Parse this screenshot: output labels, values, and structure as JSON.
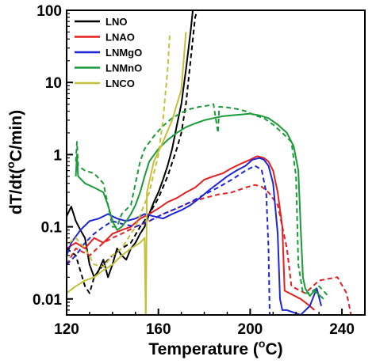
{
  "chart_data": {
    "type": "line",
    "xlabel_main": "Temperature (",
    "xlabel_sup": "o",
    "xlabel_tail": "C)",
    "ylabel_main": "dT/dt(",
    "ylabel_sup": "o",
    "ylabel_tail": "C/min)",
    "xlim": [
      120,
      250
    ],
    "ylim": [
      0.006,
      100
    ],
    "yscale": "log",
    "x_ticks": [
      120,
      160,
      200,
      240
    ],
    "y_ticks": [
      {
        "value": 100,
        "label": "100"
      },
      {
        "value": 10,
        "label": "10"
      },
      {
        "value": 1,
        "label": "1"
      },
      {
        "value": 0.1,
        "label": "0.1"
      },
      {
        "value": 0.01,
        "label": "0.01"
      }
    ],
    "legend_position": "top-left",
    "series": [
      {
        "name": "LNO",
        "color": "#000000",
        "solid": [
          [
            120,
            0.14
          ],
          [
            122,
            0.19
          ],
          [
            124,
            0.12
          ],
          [
            126,
            0.09
          ],
          [
            128,
            0.07
          ],
          [
            130,
            0.03
          ],
          [
            132,
            0.02
          ],
          [
            134,
            0.025
          ],
          [
            136,
            0.035
          ],
          [
            138,
            0.02
          ],
          [
            140,
            0.03
          ],
          [
            142,
            0.05
          ],
          [
            144,
            0.04
          ],
          [
            146,
            0.035
          ],
          [
            148,
            0.05
          ],
          [
            150,
            0.06
          ],
          [
            152,
            0.08
          ],
          [
            154,
            0.1
          ],
          [
            156,
            0.15
          ],
          [
            158,
            0.22
          ],
          [
            160,
            0.3
          ],
          [
            162,
            0.45
          ],
          [
            164,
            0.7
          ],
          [
            166,
            1.2
          ],
          [
            168,
            2.5
          ],
          [
            170,
            5
          ],
          [
            172,
            15
          ],
          [
            174,
            50
          ],
          [
            175,
            100
          ]
        ],
        "dashed": [
          [
            120,
            0.05
          ],
          [
            124,
            0.04
          ],
          [
            128,
            0.015
          ],
          [
            130,
            0.012
          ],
          [
            132,
            0.02
          ],
          [
            136,
            0.03
          ],
          [
            140,
            0.04
          ],
          [
            144,
            0.05
          ],
          [
            148,
            0.06
          ],
          [
            152,
            0.1
          ],
          [
            156,
            0.15
          ],
          [
            160,
            0.25
          ],
          [
            164,
            0.5
          ],
          [
            168,
            1.2
          ],
          [
            170,
            2
          ],
          [
            172,
            5
          ],
          [
            174,
            20
          ],
          [
            176,
            80
          ],
          [
            177,
            100
          ]
        ]
      },
      {
        "name": "LNAO",
        "color": "#e51f1f",
        "solid": [
          [
            120,
            0.05
          ],
          [
            124,
            0.06
          ],
          [
            128,
            0.05
          ],
          [
            132,
            0.07
          ],
          [
            136,
            0.06
          ],
          [
            140,
            0.08
          ],
          [
            144,
            0.09
          ],
          [
            148,
            0.1
          ],
          [
            152,
            0.13
          ],
          [
            156,
            0.15
          ],
          [
            160,
            0.18
          ],
          [
            164,
            0.22
          ],
          [
            168,
            0.25
          ],
          [
            172,
            0.3
          ],
          [
            176,
            0.35
          ],
          [
            180,
            0.45
          ],
          [
            184,
            0.5
          ],
          [
            188,
            0.55
          ],
          [
            192,
            0.65
          ],
          [
            196,
            0.75
          ],
          [
            200,
            0.85
          ],
          [
            203,
            0.95
          ],
          [
            206,
            0.9
          ],
          [
            208,
            0.8
          ],
          [
            210,
            0.6
          ],
          [
            212,
            0.3
          ],
          [
            214,
            0.1
          ],
          [
            215,
            0.013
          ],
          [
            222,
            0.01
          ],
          [
            226,
            0.008
          ],
          [
            228,
            0.007
          ]
        ],
        "dashed": [
          [
            120,
            0.03
          ],
          [
            124,
            0.05
          ],
          [
            130,
            0.04
          ],
          [
            136,
            0.06
          ],
          [
            140,
            0.07
          ],
          [
            144,
            0.08
          ],
          [
            150,
            0.1
          ],
          [
            156,
            0.12
          ],
          [
            162,
            0.15
          ],
          [
            168,
            0.18
          ],
          [
            174,
            0.22
          ],
          [
            180,
            0.25
          ],
          [
            186,
            0.28
          ],
          [
            192,
            0.3
          ],
          [
            198,
            0.35
          ],
          [
            202,
            0.38
          ],
          [
            205,
            0.36
          ],
          [
            208,
            0.3
          ],
          [
            212,
            0.2
          ],
          [
            216,
            0.05
          ],
          [
            218,
            0.015
          ],
          [
            224,
            0.012
          ],
          [
            230,
            0.018
          ],
          [
            238,
            0.02
          ],
          [
            242,
            0.012
          ],
          [
            244,
            0.006
          ]
        ]
      },
      {
        "name": "LNMgO",
        "color": "#1c26d6",
        "solid": [
          [
            120,
            0.04
          ],
          [
            122,
            0.06
          ],
          [
            126,
            0.09
          ],
          [
            130,
            0.12
          ],
          [
            134,
            0.13
          ],
          [
            138,
            0.15
          ],
          [
            142,
            0.13
          ],
          [
            146,
            0.12
          ],
          [
            150,
            0.13
          ],
          [
            154,
            0.15
          ],
          [
            158,
            0.14
          ],
          [
            162,
            0.13
          ],
          [
            166,
            0.15
          ],
          [
            170,
            0.17
          ],
          [
            174,
            0.2
          ],
          [
            178,
            0.25
          ],
          [
            182,
            0.32
          ],
          [
            186,
            0.4
          ],
          [
            190,
            0.5
          ],
          [
            194,
            0.6
          ],
          [
            198,
            0.7
          ],
          [
            201,
            0.85
          ],
          [
            204,
            0.9
          ],
          [
            206,
            0.85
          ],
          [
            208,
            0.7
          ],
          [
            210,
            0.4
          ],
          [
            212,
            0.08
          ],
          [
            213,
            0.01
          ],
          [
            214,
            0.007
          ],
          [
            216,
            0.007
          ],
          [
            222,
            0.006
          ],
          [
            226,
            0.008
          ],
          [
            229,
            0.014
          ],
          [
            231,
            0.008
          ]
        ],
        "dashed": [
          [
            120,
            0.03
          ],
          [
            124,
            0.04
          ],
          [
            128,
            0.06
          ],
          [
            132,
            0.08
          ],
          [
            136,
            0.1
          ],
          [
            140,
            0.12
          ],
          [
            144,
            0.11
          ],
          [
            150,
            0.1
          ],
          [
            156,
            0.12
          ],
          [
            162,
            0.15
          ],
          [
            168,
            0.18
          ],
          [
            174,
            0.22
          ],
          [
            180,
            0.28
          ],
          [
            186,
            0.35
          ],
          [
            192,
            0.45
          ],
          [
            198,
            0.6
          ],
          [
            202,
            0.7
          ],
          [
            205,
            0.62
          ],
          [
            207,
            0.3
          ],
          [
            208,
            0.05
          ],
          [
            208.5,
            0.006
          ]
        ]
      },
      {
        "name": "LNMnO",
        "color": "#1b9a3a",
        "solid": [
          [
            124,
            0.5
          ],
          [
            124.5,
            1.0
          ],
          [
            125,
            0.5
          ],
          [
            128,
            0.4
          ],
          [
            132,
            0.35
          ],
          [
            136,
            0.3
          ],
          [
            138,
            0.2
          ],
          [
            140,
            0.12
          ],
          [
            142,
            0.09
          ],
          [
            144,
            0.1
          ],
          [
            146,
            0.12
          ],
          [
            148,
            0.15
          ],
          [
            150,
            0.2
          ],
          [
            152,
            0.3
          ],
          [
            154,
            0.5
          ],
          [
            156,
            0.8
          ],
          [
            160,
            1.2
          ],
          [
            164,
            1.6
          ],
          [
            168,
            2.0
          ],
          [
            172,
            2.4
          ],
          [
            176,
            2.7
          ],
          [
            180,
            3.0
          ],
          [
            184,
            3.2
          ],
          [
            188,
            3.4
          ],
          [
            192,
            3.5
          ],
          [
            196,
            3.6
          ],
          [
            200,
            3.7
          ],
          [
            204,
            3.5
          ],
          [
            208,
            3.2
          ],
          [
            212,
            2.6
          ],
          [
            216,
            2.0
          ],
          [
            219,
            1.3
          ],
          [
            221,
            0.6
          ],
          [
            222,
            0.1
          ],
          [
            223,
            0.02
          ],
          [
            224,
            0.014
          ],
          [
            226,
            0.011
          ],
          [
            228,
            0.013
          ],
          [
            232,
            0.01
          ]
        ],
        "dashed": [
          [
            124,
            0.8
          ],
          [
            124.5,
            1.5
          ],
          [
            125,
            0.7
          ],
          [
            128,
            0.6
          ],
          [
            132,
            0.55
          ],
          [
            136,
            0.4
          ],
          [
            138,
            0.2
          ],
          [
            140,
            0.1
          ],
          [
            142,
            0.1
          ],
          [
            144,
            0.15
          ],
          [
            148,
            0.2
          ],
          [
            150,
            0.4
          ],
          [
            152,
            0.8
          ],
          [
            154,
            1.2
          ],
          [
            158,
            1.8
          ],
          [
            162,
            2.5
          ],
          [
            166,
            3.2
          ],
          [
            170,
            3.8
          ],
          [
            174,
            4.3
          ],
          [
            178,
            4.6
          ],
          [
            182,
            4.8
          ],
          [
            184,
            5.0
          ],
          [
            186,
            2.0
          ],
          [
            186.5,
            4.6
          ],
          [
            190,
            4.5
          ],
          [
            194,
            4.3
          ],
          [
            198,
            4.0
          ],
          [
            202,
            3.5
          ],
          [
            206,
            3.2
          ],
          [
            210,
            2.6
          ],
          [
            214,
            2.0
          ],
          [
            218,
            1.5
          ],
          [
            220,
            0.5
          ],
          [
            221,
            0.03
          ],
          [
            223,
            0.012
          ],
          [
            226,
            0.012
          ],
          [
            230,
            0.015
          ],
          [
            234,
            0.011
          ]
        ]
      },
      {
        "name": "LNCO",
        "color": "#c5c03a",
        "solid": [
          [
            120,
            0.012
          ],
          [
            124,
            0.015
          ],
          [
            128,
            0.018
          ],
          [
            132,
            0.02
          ],
          [
            136,
            0.025
          ],
          [
            140,
            0.03
          ],
          [
            144,
            0.04
          ],
          [
            148,
            0.05
          ],
          [
            152,
            0.06
          ],
          [
            154,
            0.07
          ],
          [
            154.5,
            0.005
          ],
          [
            155,
            0.3
          ],
          [
            158,
            0.8
          ],
          [
            162,
            1.5
          ],
          [
            166,
            3
          ],
          [
            170,
            8
          ],
          [
            172,
            50
          ]
        ],
        "dashed": [
          [
            121,
            0.06
          ],
          [
            124,
            0.07
          ],
          [
            128,
            0.05
          ],
          [
            132,
            0.03
          ],
          [
            136,
            0.028
          ],
          [
            140,
            0.04
          ],
          [
            144,
            0.05
          ],
          [
            150,
            0.1
          ],
          [
            156,
            0.3
          ],
          [
            160,
            1.0
          ],
          [
            162,
            3
          ],
          [
            164,
            15
          ],
          [
            165,
            50
          ]
        ]
      }
    ]
  }
}
